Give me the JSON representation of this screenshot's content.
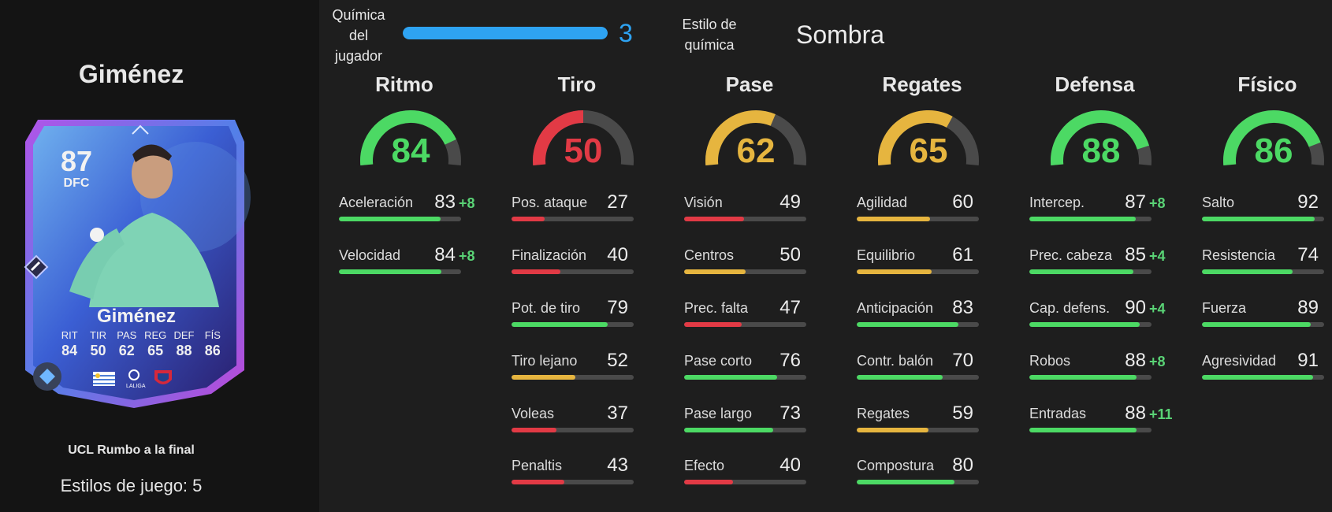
{
  "player": {
    "name": "Giménez",
    "card_name": "Giménez",
    "overall": "87",
    "position": "DFC",
    "card_stats": [
      {
        "label": "RIT",
        "value": "84"
      },
      {
        "label": "TIR",
        "value": "50"
      },
      {
        "label": "PAS",
        "value": "62"
      },
      {
        "label": "REG",
        "value": "65"
      },
      {
        "label": "DEF",
        "value": "88"
      },
      {
        "label": "FÍS",
        "value": "86"
      }
    ],
    "league_text": "LALIGA",
    "promo": "UCL Rumbo a la final",
    "playstyles": "Estilos de juego: 5"
  },
  "chemistry": {
    "label": "Química del jugador",
    "value": "3",
    "fill": 1.0,
    "style_label": "Estilo de química",
    "style_value": "Sombra"
  },
  "colors": {
    "high": "#4cd964",
    "mid": "#e6b53f",
    "low": "#e23a45",
    "chem": "#2ea3f2"
  },
  "categories": [
    {
      "title": "Ritmo",
      "value": 84,
      "attrs": [
        {
          "name": "Aceleración",
          "value": 83,
          "bonus": "+8"
        },
        {
          "name": "Velocidad",
          "value": 84,
          "bonus": "+8"
        }
      ]
    },
    {
      "title": "Tiro",
      "value": 50,
      "attrs": [
        {
          "name": "Pos. ataque",
          "value": 27,
          "bonus": ""
        },
        {
          "name": "Finalización",
          "value": 40,
          "bonus": ""
        },
        {
          "name": "Pot. de tiro",
          "value": 79,
          "bonus": ""
        },
        {
          "name": "Tiro lejano",
          "value": 52,
          "bonus": ""
        },
        {
          "name": "Voleas",
          "value": 37,
          "bonus": ""
        },
        {
          "name": "Penaltis",
          "value": 43,
          "bonus": ""
        }
      ]
    },
    {
      "title": "Pase",
      "value": 62,
      "attrs": [
        {
          "name": "Visión",
          "value": 49,
          "bonus": ""
        },
        {
          "name": "Centros",
          "value": 50,
          "bonus": ""
        },
        {
          "name": "Prec. falta",
          "value": 47,
          "bonus": ""
        },
        {
          "name": "Pase corto",
          "value": 76,
          "bonus": ""
        },
        {
          "name": "Pase largo",
          "value": 73,
          "bonus": ""
        },
        {
          "name": "Efecto",
          "value": 40,
          "bonus": ""
        }
      ]
    },
    {
      "title": "Regates",
      "value": 65,
      "attrs": [
        {
          "name": "Agilidad",
          "value": 60,
          "bonus": ""
        },
        {
          "name": "Equilibrio",
          "value": 61,
          "bonus": ""
        },
        {
          "name": "Anticipación",
          "value": 83,
          "bonus": ""
        },
        {
          "name": "Contr. balón",
          "value": 70,
          "bonus": ""
        },
        {
          "name": "Regates",
          "value": 59,
          "bonus": ""
        },
        {
          "name": "Compostura",
          "value": 80,
          "bonus": ""
        }
      ]
    },
    {
      "title": "Defensa",
      "value": 88,
      "attrs": [
        {
          "name": "Intercep.",
          "value": 87,
          "bonus": "+8"
        },
        {
          "name": "Prec. cabeza",
          "value": 85,
          "bonus": "+4"
        },
        {
          "name": "Cap. defens.",
          "value": 90,
          "bonus": "+4"
        },
        {
          "name": "Robos",
          "value": 88,
          "bonus": "+8"
        },
        {
          "name": "Entradas",
          "value": 88,
          "bonus": "+11"
        }
      ]
    },
    {
      "title": "Físico",
      "value": 86,
      "attrs": [
        {
          "name": "Salto",
          "value": 92,
          "bonus": ""
        },
        {
          "name": "Resistencia",
          "value": 74,
          "bonus": ""
        },
        {
          "name": "Fuerza",
          "value": 89,
          "bonus": ""
        },
        {
          "name": "Agresividad",
          "value": 91,
          "bonus": ""
        }
      ]
    }
  ]
}
